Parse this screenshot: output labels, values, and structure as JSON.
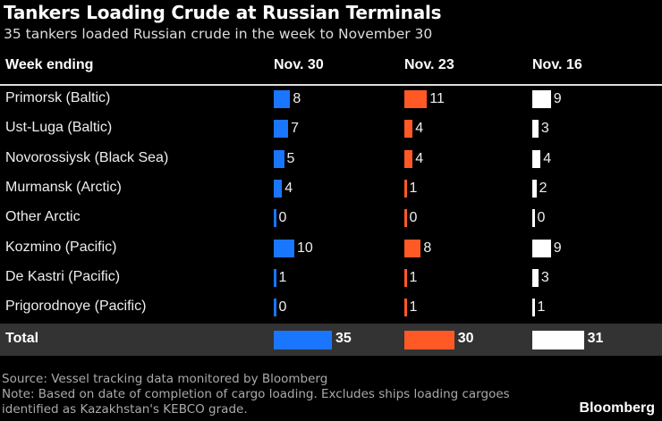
{
  "title": "Tankers Loading Crude at Russian Terminals",
  "subtitle": "35 tankers loaded Russian crude in the week to November 30",
  "chart_data": {
    "type": "table",
    "row_header": "Week ending",
    "columns": [
      "Nov. 30",
      "Nov. 23",
      "Nov. 16"
    ],
    "colors": [
      "#1a75ff",
      "#ff5a26",
      "#ffffff"
    ],
    "rows": [
      {
        "label": "Primorsk (Baltic)",
        "values": [
          8,
          11,
          9
        ]
      },
      {
        "label": "Ust-Luga (Baltic)",
        "values": [
          7,
          4,
          3
        ]
      },
      {
        "label": "Novorossiysk (Black Sea)",
        "values": [
          5,
          4,
          4
        ]
      },
      {
        "label": "Murmansk (Arctic)",
        "values": [
          4,
          1,
          2
        ]
      },
      {
        "label": "Other Arctic",
        "values": [
          0,
          0,
          0
        ]
      },
      {
        "label": "Kozmino (Pacific)",
        "values": [
          10,
          8,
          9
        ]
      },
      {
        "label": "De Kastri (Pacific)",
        "values": [
          1,
          1,
          3
        ]
      },
      {
        "label": "Prigorodnoye (Pacific)",
        "values": [
          0,
          1,
          1
        ]
      }
    ],
    "total": {
      "label": "Total",
      "values": [
        35,
        30,
        31
      ]
    }
  },
  "footer": {
    "source": "Source: Vessel tracking data monitored by Bloomberg",
    "note": "Note: Based on date of completion of cargo loading. Excludes ships loading cargoes identified as Kazakhstan's KEBCO grade."
  },
  "logo": "Bloomberg"
}
